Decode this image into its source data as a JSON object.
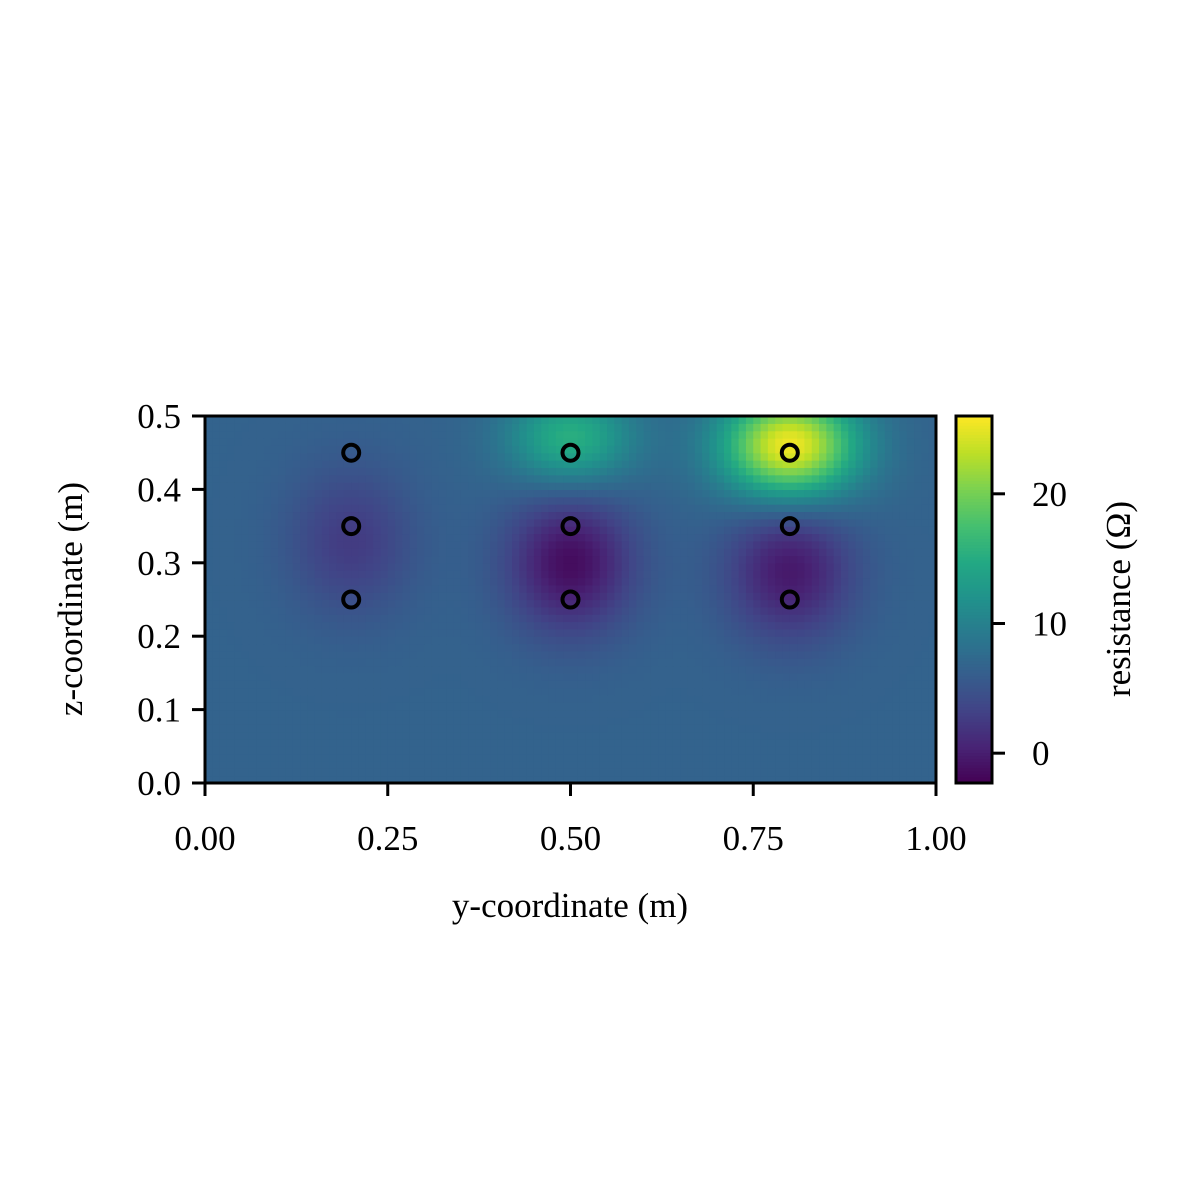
{
  "chart_data": {
    "type": "heatmap",
    "title": "",
    "xlabel": "y-coordinate (m)",
    "ylabel": "z-coordinate (m)",
    "xlim": [
      0.0,
      1.0
    ],
    "ylim": [
      0.0,
      0.5
    ],
    "xticks": [
      0.0,
      0.25,
      0.5,
      0.75,
      1.0
    ],
    "xtick_labels": [
      "0.00",
      "0.25",
      "0.50",
      "0.75",
      "1.00"
    ],
    "yticks": [
      0.0,
      0.1,
      0.2,
      0.3,
      0.4,
      0.5
    ],
    "ytick_labels": [
      "0.0",
      "0.1",
      "0.2",
      "0.3",
      "0.4",
      "0.5"
    ],
    "colormap": "viridis",
    "background_value": 6.6,
    "colorbar": {
      "label": "resistance (Ω)",
      "vmin": -2.3,
      "vmax": 26,
      "ticks": [
        0,
        10,
        20
      ],
      "tick_labels": [
        "0",
        "10",
        "20"
      ]
    },
    "field_features": [
      {
        "y": 0.2,
        "z": 0.33,
        "amplitude": -4.0,
        "sigma_y": 0.06,
        "sigma_z": 0.07
      },
      {
        "y": 0.5,
        "z": 0.3,
        "amplitude": -8.0,
        "sigma_y": 0.06,
        "sigma_z": 0.065
      },
      {
        "y": 0.8,
        "z": 0.29,
        "amplitude": -7.0,
        "sigma_y": 0.06,
        "sigma_z": 0.065
      },
      {
        "y": 0.5,
        "z": 0.47,
        "amplitude": 9.0,
        "sigma_y": 0.06,
        "sigma_z": 0.045
      },
      {
        "y": 0.8,
        "z": 0.46,
        "amplitude": 19.0,
        "sigma_y": 0.065,
        "sigma_z": 0.05
      }
    ],
    "markers": [
      {
        "y": 0.2,
        "z": 0.45
      },
      {
        "y": 0.5,
        "z": 0.45
      },
      {
        "y": 0.8,
        "z": 0.45
      },
      {
        "y": 0.2,
        "z": 0.35
      },
      {
        "y": 0.5,
        "z": 0.35
      },
      {
        "y": 0.8,
        "z": 0.35
      },
      {
        "y": 0.2,
        "z": 0.25
      },
      {
        "y": 0.5,
        "z": 0.25
      },
      {
        "y": 0.8,
        "z": 0.25
      }
    ],
    "grid": false,
    "legend": "none"
  }
}
